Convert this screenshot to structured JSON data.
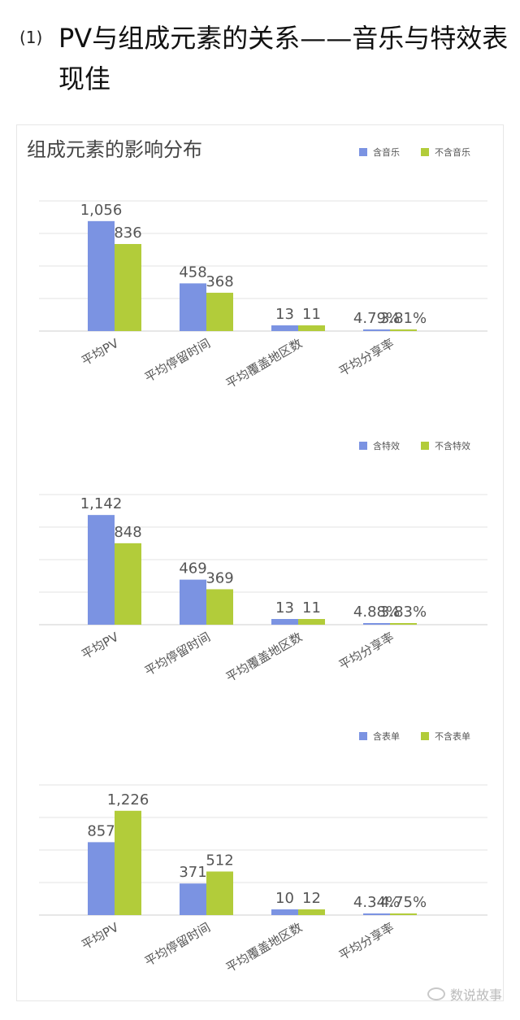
{
  "heading": {
    "number": "(1)",
    "text": "PV与组成元素的关系——音乐与特效表现佳"
  },
  "card_title": "组成元素的影响分布",
  "watermark": "数说故事",
  "colors": {
    "with": "#7b93e2",
    "without": "#b2cc3a",
    "grid": "#e3e3e3",
    "axis": "#cfcfcf"
  },
  "chart_data": [
    {
      "type": "bar",
      "categories": [
        "平均PV",
        "平均停留时间",
        "平均覆盖地区数",
        "平均分享率"
      ],
      "series": [
        {
          "name": "含音乐",
          "values": [
            1056,
            458,
            13,
            4.79
          ],
          "labels": [
            "1,056",
            "458",
            "13",
            "4.79%"
          ]
        },
        {
          "name": "不含音乐",
          "values": [
            836,
            368,
            11,
            3.81
          ],
          "labels": [
            "836",
            "368",
            "11",
            "3.81%"
          ]
        }
      ],
      "ylim": [
        0,
        1250
      ],
      "grid": true,
      "legend": "top-right"
    },
    {
      "type": "bar",
      "categories": [
        "平均PV",
        "平均停留时间",
        "平均覆盖地区数",
        "平均分享率"
      ],
      "series": [
        {
          "name": "含特效",
          "values": [
            1142,
            469,
            13,
            4.88
          ],
          "labels": [
            "1,142",
            "469",
            "13",
            "4.88%"
          ]
        },
        {
          "name": "不含特效",
          "values": [
            848,
            369,
            11,
            3.83
          ],
          "labels": [
            "848",
            "369",
            "11",
            "3.83%"
          ]
        }
      ],
      "ylim": [
        0,
        1355
      ],
      "grid": true,
      "legend": "top-right"
    },
    {
      "type": "bar",
      "categories": [
        "平均PV",
        "平均停留时间",
        "平均覆盖地区数",
        "平均分享率"
      ],
      "series": [
        {
          "name": "含表单",
          "values": [
            857,
            371,
            10,
            4.34
          ],
          "labels": [
            "857",
            "371",
            "10",
            "4.34%"
          ]
        },
        {
          "name": "不含表单",
          "values": [
            1226,
            512,
            12,
            4.75
          ],
          "labels": [
            "1,226",
            "512",
            "12",
            "4.75%"
          ]
        }
      ],
      "ylim": [
        0,
        1530
      ],
      "grid": true,
      "legend": "top-right"
    }
  ]
}
